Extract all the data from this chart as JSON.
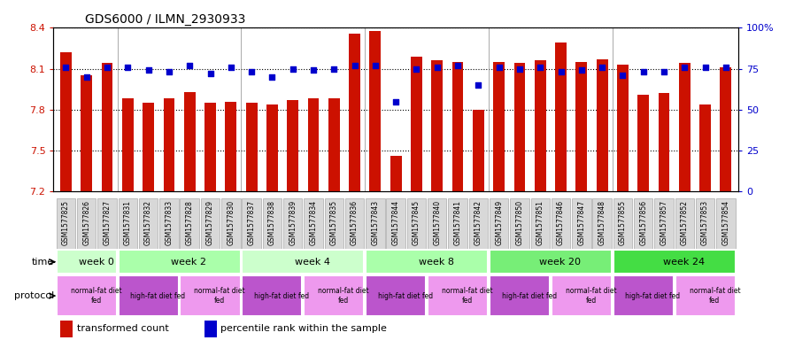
{
  "title": "GDS6000 / ILMN_2930933",
  "samples": [
    "GSM1577825",
    "GSM1577826",
    "GSM1577827",
    "GSM1577831",
    "GSM1577832",
    "GSM1577833",
    "GSM1577828",
    "GSM1577829",
    "GSM1577830",
    "GSM1577837",
    "GSM1577838",
    "GSM1577839",
    "GSM1577834",
    "GSM1577835",
    "GSM1577836",
    "GSM1577843",
    "GSM1577844",
    "GSM1577845",
    "GSM1577840",
    "GSM1577841",
    "GSM1577842",
    "GSM1577849",
    "GSM1577850",
    "GSM1577851",
    "GSM1577846",
    "GSM1577847",
    "GSM1577848",
    "GSM1577855",
    "GSM1577856",
    "GSM1577857",
    "GSM1577852",
    "GSM1577853",
    "GSM1577854"
  ],
  "bar_values": [
    8.22,
    8.05,
    8.14,
    7.88,
    7.85,
    7.88,
    7.93,
    7.85,
    7.86,
    7.85,
    7.84,
    7.87,
    7.88,
    7.88,
    8.36,
    8.38,
    7.46,
    8.19,
    8.16,
    8.15,
    7.8,
    8.15,
    8.14,
    8.16,
    8.29,
    8.15,
    8.17,
    8.13,
    7.91,
    7.92,
    8.14,
    7.84,
    8.11
  ],
  "percentile_values": [
    76,
    70,
    76,
    76,
    74,
    73,
    77,
    72,
    76,
    73,
    70,
    75,
    74,
    75,
    77,
    77,
    55,
    75,
    76,
    77,
    65,
    76,
    75,
    76,
    73,
    74,
    76,
    71,
    73,
    73,
    76,
    76,
    76
  ],
  "ylim_left": [
    7.2,
    8.4
  ],
  "ylim_right": [
    0,
    100
  ],
  "yticks_left": [
    7.2,
    7.5,
    7.8,
    8.1,
    8.4
  ],
  "yticks_right": [
    0,
    25,
    50,
    75,
    100
  ],
  "yticks_right_labels": [
    "0",
    "25",
    "50",
    "75",
    "100%"
  ],
  "bar_color": "#CC1100",
  "dot_color": "#0000CC",
  "time_groups": [
    {
      "label": "week 0",
      "start": 0,
      "end": 3,
      "color": "#CCFFCC"
    },
    {
      "label": "week 2",
      "start": 3,
      "end": 9,
      "color": "#AAFFAA"
    },
    {
      "label": "week 4",
      "start": 9,
      "end": 15,
      "color": "#CCFFCC"
    },
    {
      "label": "week 8",
      "start": 15,
      "end": 21,
      "color": "#AAFFAA"
    },
    {
      "label": "week 20",
      "start": 21,
      "end": 27,
      "color": "#77EE77"
    },
    {
      "label": "week 24",
      "start": 27,
      "end": 33,
      "color": "#44DD44"
    }
  ],
  "protocol_groups": [
    {
      "label": "normal-fat diet\nfed",
      "start": 0,
      "end": 3,
      "color": "#EE99EE"
    },
    {
      "label": "high-fat diet fed",
      "start": 3,
      "end": 6,
      "color": "#BB55CC"
    },
    {
      "label": "normal-fat diet\nfed",
      "start": 6,
      "end": 9,
      "color": "#EE99EE"
    },
    {
      "label": "high-fat diet fed",
      "start": 9,
      "end": 12,
      "color": "#BB55CC"
    },
    {
      "label": "normal-fat diet\nfed",
      "start": 12,
      "end": 15,
      "color": "#EE99EE"
    },
    {
      "label": "high-fat diet fed",
      "start": 15,
      "end": 18,
      "color": "#BB55CC"
    },
    {
      "label": "normal-fat diet\nfed",
      "start": 18,
      "end": 21,
      "color": "#EE99EE"
    },
    {
      "label": "high-fat diet fed",
      "start": 21,
      "end": 24,
      "color": "#BB55CC"
    },
    {
      "label": "normal-fat diet\nfed",
      "start": 24,
      "end": 27,
      "color": "#EE99EE"
    },
    {
      "label": "high-fat diet fed",
      "start": 27,
      "end": 30,
      "color": "#BB55CC"
    },
    {
      "label": "normal-fat diet\nfed",
      "start": 30,
      "end": 33,
      "color": "#EE99EE"
    }
  ],
  "legend_bar_label": "transformed count",
  "legend_dot_label": "percentile rank within the sample"
}
